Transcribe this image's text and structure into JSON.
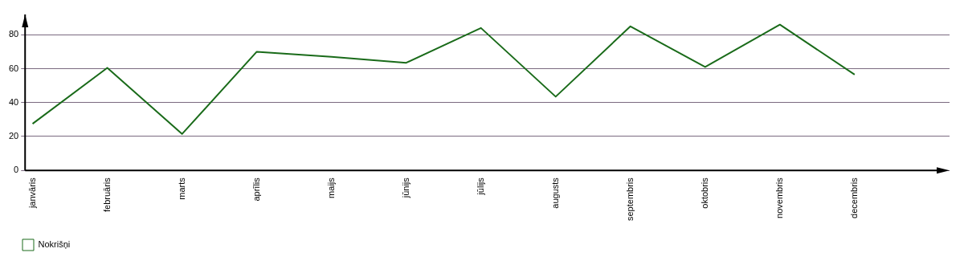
{
  "chart_data": {
    "type": "line",
    "categories": [
      "janvāris",
      "februāris",
      "marts",
      "aprīlis",
      "maijs",
      "jūnijs",
      "jūlijs",
      "augusts",
      "septembris",
      "oktobris",
      "novembris",
      "decembris"
    ],
    "series": [
      {
        "name": "Nokrišņi",
        "color": "#1a6b1a",
        "values": [
          27.5,
          60.5,
          21.5,
          70,
          67,
          63.5,
          84,
          43.5,
          85,
          61,
          86,
          56.5
        ]
      }
    ],
    "ylim": [
      0,
      92
    ],
    "yticks": [
      0,
      20,
      40,
      60,
      80
    ],
    "grid": "y",
    "legend": "bottom left",
    "marker": "none",
    "line_style": "solid"
  }
}
